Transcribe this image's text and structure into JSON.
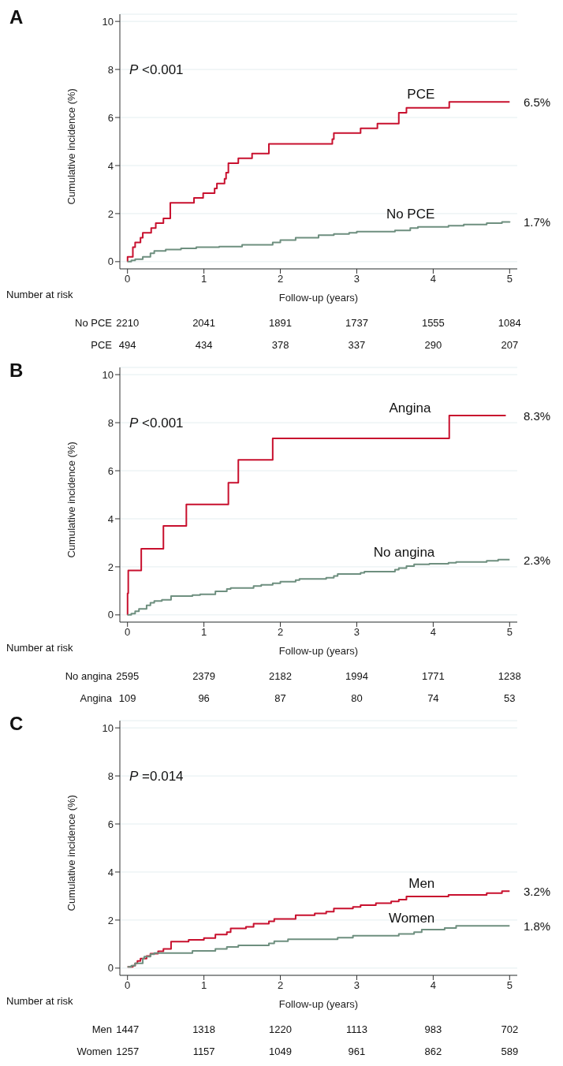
{
  "chart_data": [
    {
      "type": "step",
      "title": "A",
      "xlabel": "Follow-up (years)",
      "ylabel": "Cumulative incidence (%)",
      "xlim": [
        -0.1,
        5.1
      ],
      "xticks": [
        0,
        1,
        2,
        3,
        4,
        5
      ],
      "ylim": [
        -0.3,
        10.3
      ],
      "yticks": [
        0,
        2,
        4,
        6,
        8,
        10
      ],
      "grid": "y",
      "series": [
        {
          "name": "PCE",
          "color": "#c8102e",
          "x": [
            0,
            0.001,
            0.07,
            0.1,
            0.17,
            0.2,
            0.31,
            0.37,
            0.47,
            0.56,
            0.87,
            0.99,
            1.14,
            1.17,
            1.27,
            1.29,
            1.32,
            1.45,
            1.63,
            1.85,
            2.68,
            2.7,
            3.05,
            3.27,
            3.55,
            3.65,
            4.21,
            5
          ],
          "values": [
            0,
            0.2,
            0.6,
            0.8,
            1.0,
            1.2,
            1.4,
            1.6,
            1.8,
            2.45,
            2.65,
            2.85,
            3.05,
            3.25,
            3.45,
            3.7,
            4.1,
            4.3,
            4.5,
            4.9,
            5.1,
            5.35,
            5.55,
            5.75,
            6.2,
            6.4,
            6.65,
            6.65
          ]
        },
        {
          "name": "No PCE",
          "color": "#6e8f7f",
          "x": [
            0,
            0.05,
            0.1,
            0.2,
            0.3,
            0.35,
            0.5,
            0.7,
            0.9,
            1.2,
            1.5,
            1.9,
            2.0,
            2.2,
            2.5,
            2.7,
            2.9,
            3.0,
            3.5,
            3.7,
            3.8,
            4.2,
            4.4,
            4.7,
            4.9,
            5
          ],
          "values": [
            0,
            0.05,
            0.1,
            0.2,
            0.35,
            0.45,
            0.5,
            0.55,
            0.6,
            0.63,
            0.7,
            0.8,
            0.9,
            1.0,
            1.1,
            1.15,
            1.2,
            1.25,
            1.3,
            1.4,
            1.45,
            1.5,
            1.55,
            1.6,
            1.65,
            1.68
          ]
        }
      ],
      "annotations": [
        "P <0.001",
        "6.5%",
        "1.7%",
        "Number at risk",
        "No PCE",
        "2210",
        "2041",
        "1891",
        "1737",
        "1555",
        "1084",
        "PCE",
        "494",
        "434",
        "378",
        "337",
        "290",
        "207"
      ]
    },
    {
      "type": "step",
      "title": "B",
      "xlabel": "Follow-up (years)",
      "ylabel": "Cumulative incidence (%)",
      "xlim": [
        -0.1,
        5.1
      ],
      "xticks": [
        0,
        1,
        2,
        3,
        4,
        5
      ],
      "ylim": [
        -0.3,
        10.3
      ],
      "yticks": [
        0,
        2,
        4,
        6,
        8,
        10
      ],
      "grid": "y",
      "series": [
        {
          "name": "Angina",
          "color": "#c8102e",
          "x": [
            0,
            0.001,
            0.01,
            0.18,
            0.47,
            0.77,
            1.32,
            1.45,
            1.9,
            4.21,
            4.95
          ],
          "values": [
            0,
            0.9,
            1.85,
            2.75,
            3.7,
            4.6,
            5.5,
            6.45,
            7.35,
            8.3,
            8.3
          ]
        },
        {
          "name": "No angina",
          "color": "#6e8f7f",
          "x": [
            0,
            0.05,
            0.1,
            0.15,
            0.25,
            0.3,
            0.35,
            0.45,
            0.57,
            0.85,
            0.95,
            1.15,
            1.3,
            1.35,
            1.65,
            1.75,
            1.9,
            2.0,
            2.2,
            2.25,
            2.6,
            2.7,
            2.75,
            3.05,
            3.1,
            3.5,
            3.55,
            3.65,
            3.75,
            3.95,
            4.2,
            4.3,
            4.7,
            4.85,
            5
          ],
          "values": [
            0,
            0.05,
            0.15,
            0.25,
            0.4,
            0.5,
            0.58,
            0.63,
            0.78,
            0.82,
            0.86,
            0.98,
            1.08,
            1.12,
            1.2,
            1.25,
            1.32,
            1.38,
            1.45,
            1.5,
            1.55,
            1.62,
            1.7,
            1.75,
            1.8,
            1.88,
            1.95,
            2.03,
            2.1,
            2.13,
            2.17,
            2.2,
            2.25,
            2.3,
            2.3
          ]
        }
      ],
      "annotations": [
        "P <0.001",
        "8.3%",
        "2.3%",
        "Number at risk",
        "No angina",
        "2595",
        "2379",
        "2182",
        "1994",
        "1771",
        "1238",
        "Angina",
        "109",
        "96",
        "87",
        "80",
        "74",
        "53"
      ]
    },
    {
      "type": "step",
      "title": "C",
      "xlabel": "Follow-up (years)",
      "ylabel": "Cumulative incidence (%)",
      "xlim": [
        -0.1,
        5.1
      ],
      "xticks": [
        0,
        1,
        2,
        3,
        4,
        5
      ],
      "ylim": [
        -0.3,
        10.3
      ],
      "yticks": [
        0,
        2,
        4,
        6,
        8,
        10
      ],
      "grid": "y",
      "series": [
        {
          "name": "Men",
          "color": "#c8102e",
          "x": [
            0,
            0.07,
            0.1,
            0.13,
            0.17,
            0.25,
            0.3,
            0.4,
            0.47,
            0.57,
            0.8,
            1.0,
            1.15,
            1.3,
            1.35,
            1.55,
            1.65,
            1.85,
            1.92,
            2.2,
            2.45,
            2.6,
            2.7,
            2.95,
            3.05,
            3.25,
            3.45,
            3.55,
            3.65,
            4.2,
            4.7,
            4.9,
            5
          ],
          "values": [
            0.05,
            0.1,
            0.2,
            0.3,
            0.4,
            0.5,
            0.6,
            0.7,
            0.8,
            1.1,
            1.18,
            1.25,
            1.4,
            1.5,
            1.65,
            1.72,
            1.85,
            1.95,
            2.05,
            2.2,
            2.28,
            2.35,
            2.48,
            2.55,
            2.62,
            2.7,
            2.78,
            2.85,
            2.98,
            3.05,
            3.12,
            3.2,
            3.2
          ]
        },
        {
          "name": "Women",
          "color": "#6e8f7f",
          "x": [
            0,
            0.05,
            0.1,
            0.2,
            0.22,
            0.3,
            0.35,
            0.85,
            1.15,
            1.3,
            1.45,
            1.85,
            1.92,
            2.1,
            2.75,
            2.95,
            3.55,
            3.75,
            3.85,
            4.15,
            4.3,
            5
          ],
          "values": [
            0.05,
            0.1,
            0.2,
            0.4,
            0.48,
            0.58,
            0.63,
            0.72,
            0.8,
            0.88,
            0.95,
            1.03,
            1.12,
            1.2,
            1.27,
            1.35,
            1.42,
            1.5,
            1.6,
            1.67,
            1.76,
            1.76
          ]
        }
      ],
      "annotations": [
        "P =0.014",
        "3.2%",
        "1.8%",
        "Number at risk",
        "Men",
        "1447",
        "1318",
        "1220",
        "1113",
        "983",
        "702",
        "Women",
        "1257",
        "1157",
        "1049",
        "961",
        "862",
        "589"
      ]
    }
  ]
}
